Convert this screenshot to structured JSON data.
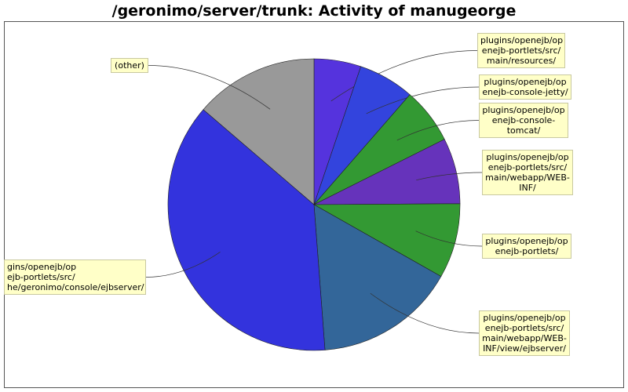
{
  "chart_data": {
    "type": "pie",
    "title": "/geronimo/server/trunk: Activity of manugeorge",
    "slices": [
      {
        "label": "plugins/openejb/openejb-portlets/src/main/resources/",
        "display": "plugins/openejb/op\nenejb-portlets/src/\nmain/resources/",
        "value": 5.2,
        "color": "#5533dd"
      },
      {
        "label": "plugins/openejb/openejb-console-jetty/",
        "display": "plugins/openejb/op\nenejb-console-jetty/",
        "value": 6.2,
        "color": "#3344dd"
      },
      {
        "label": "plugins/openejb/openejb-console-tomcat/",
        "display": "plugins/openejb/op\nenejb-console-\ntomcat/",
        "value": 6.2,
        "color": "#339933"
      },
      {
        "label": "plugins/openejb/openejb-portlets/src/main/webapp/WEB-INF/",
        "display": "plugins/openejb/op\nenejb-portlets/src/\nmain/webapp/WEB-\nINF/",
        "value": 7.3,
        "color": "#6633bb"
      },
      {
        "label": "plugins/openejb/openejb-portlets/",
        "display": "plugins/openejb/op\nenejb-portlets/",
        "value": 8.3,
        "color": "#339933"
      },
      {
        "label": "plugins/openejb/openejb-portlets/src/main/webapp/WEB-INF/view/ejbserver/",
        "display": "plugins/openejb/op\nenejb-portlets/src/\nmain/webapp/WEB-\nINF/view/ejbserver/",
        "value": 15.6,
        "color": "#336699"
      },
      {
        "label": "plugins/openejb/openejb-portlets/src/main/java/org/apache/geronimo/console/ejbserver/",
        "display": "gins/openejb/op\nejb-portlets/src/\nhe/geronimo/console/ejbserver/",
        "value": 37.5,
        "color": "#3333dd"
      },
      {
        "label": "(other)",
        "display": "(other)",
        "value": 13.7,
        "color": "#999999"
      }
    ]
  }
}
